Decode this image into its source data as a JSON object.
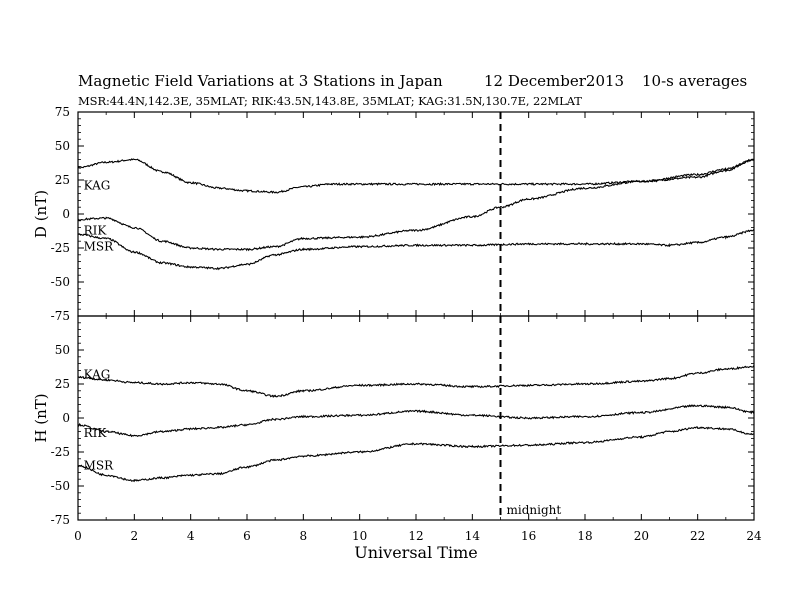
{
  "header": {
    "title": "Magnetic Field Variations at 3 Stations in Japan",
    "date": "12 December2013",
    "averaging": "10-s averages",
    "stations": "MSR:44.4N,142.3E, 35MLAT;  RIK:43.5N,143.8E, 35MLAT;  KAG:31.5N,130.7E, 22MLAT"
  },
  "annotations": {
    "midnight": "midnight"
  },
  "chart_data": [
    {
      "type": "line",
      "panel": "top",
      "ylabel": "D (nT)",
      "xlim": [
        0,
        24
      ],
      "ylim": [
        -75,
        75
      ],
      "yticks": [
        -75,
        -50,
        -25,
        0,
        25,
        50,
        75
      ],
      "xticks": [
        0,
        2,
        4,
        6,
        8,
        10,
        12,
        14,
        16,
        18,
        20,
        22,
        24
      ],
      "vline": {
        "x": 15,
        "style": "dashed"
      },
      "series": [
        {
          "name": "KAG",
          "label_x": 0.2,
          "label_y": 18,
          "x": [
            0,
            1,
            2,
            3,
            4,
            5,
            6,
            7,
            8,
            9,
            10,
            12,
            14,
            16,
            18,
            20,
            22,
            23,
            24
          ],
          "y": [
            34,
            38,
            40,
            31,
            23,
            19,
            17,
            16,
            20,
            22,
            22,
            22,
            22,
            22,
            22,
            24,
            27,
            32,
            40
          ]
        },
        {
          "name": "RIK",
          "label_x": 0.2,
          "label_y": -15,
          "x": [
            0,
            1,
            2,
            3,
            4,
            5,
            6,
            7,
            8,
            10,
            12,
            14,
            15,
            16,
            18,
            20,
            22,
            23,
            24
          ],
          "y": [
            -4,
            -3,
            -10,
            -20,
            -25,
            -26,
            -26,
            -24,
            -18,
            -17,
            -12,
            -2,
            5,
            11,
            19,
            24,
            29,
            33,
            40
          ]
        },
        {
          "name": "MSR",
          "label_x": 0.2,
          "label_y": -27,
          "x": [
            0,
            1,
            2,
            3,
            4,
            5,
            6,
            7,
            8,
            10,
            12,
            14,
            16,
            18,
            20,
            21,
            22,
            23,
            24
          ],
          "y": [
            -15,
            -18,
            -28,
            -36,
            -39,
            -40,
            -37,
            -30,
            -26,
            -24,
            -23,
            -23,
            -22,
            -22,
            -22,
            -23,
            -21,
            -17,
            -12
          ]
        }
      ]
    },
    {
      "type": "line",
      "panel": "bottom",
      "xlabel": "Universal Time",
      "ylabel": "H (nT)",
      "xlim": [
        0,
        24
      ],
      "ylim": [
        -75,
        75
      ],
      "yticks": [
        -75,
        -50,
        -25,
        0,
        25,
        50,
        75
      ],
      "xticks": [
        0,
        2,
        4,
        6,
        8,
        10,
        12,
        14,
        16,
        18,
        20,
        22,
        24
      ],
      "vline": {
        "x": 15,
        "style": "dashed"
      },
      "series": [
        {
          "name": "KAG",
          "label_x": 0.2,
          "label_y": 29,
          "x": [
            0,
            1,
            2,
            3,
            4,
            5,
            6,
            7,
            8,
            10,
            12,
            14,
            16,
            18,
            20,
            21,
            22,
            23,
            24
          ],
          "y": [
            30,
            28,
            26,
            25,
            26,
            25,
            20,
            16,
            20,
            24,
            25,
            23,
            24,
            25,
            27,
            29,
            33,
            36,
            38
          ]
        },
        {
          "name": "RIK",
          "label_x": 0.2,
          "label_y": -14,
          "x": [
            0,
            1,
            2,
            3,
            4,
            5,
            6,
            7,
            8,
            10,
            12,
            14,
            16,
            18,
            20,
            22,
            23,
            24
          ],
          "y": [
            -5,
            -10,
            -13,
            -10,
            -8,
            -7,
            -5,
            -1,
            1,
            2,
            5,
            2,
            0,
            1,
            4,
            9,
            8,
            4
          ]
        },
        {
          "name": "MSR",
          "label_x": 0.2,
          "label_y": -38,
          "x": [
            0,
            1,
            2,
            3,
            4,
            5,
            6,
            7,
            8,
            10,
            12,
            14,
            16,
            18,
            20,
            21,
            22,
            23,
            24
          ],
          "y": [
            -35,
            -42,
            -46,
            -44,
            -42,
            -41,
            -36,
            -31,
            -28,
            -25,
            -19,
            -21,
            -20,
            -18,
            -14,
            -10,
            -7,
            -8,
            -12
          ]
        }
      ]
    }
  ]
}
